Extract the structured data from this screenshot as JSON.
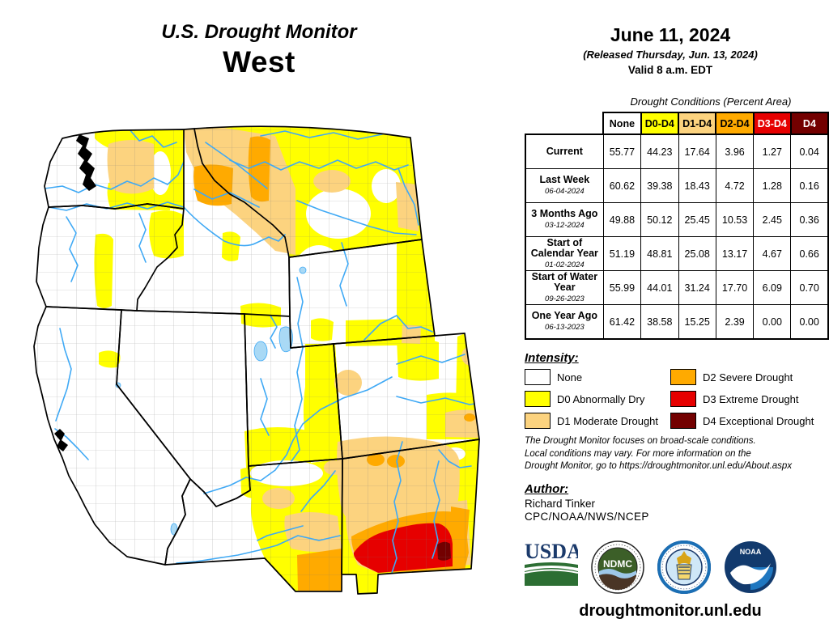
{
  "title": {
    "line1": "U.S. Drought Monitor",
    "region": "West"
  },
  "date_block": {
    "date": "June 11, 2024",
    "released": "(Released Thursday, Jun. 13, 2024)",
    "valid": "Valid 8 a.m. EDT"
  },
  "table": {
    "caption": "Drought Conditions (Percent Area)",
    "columns": [
      {
        "label": "None",
        "bg": "#FFFFFF",
        "fg": "#000000"
      },
      {
        "label": "D0-D4",
        "bg": "#FFFF00",
        "fg": "#000000"
      },
      {
        "label": "D1-D4",
        "bg": "#FCD37F",
        "fg": "#000000"
      },
      {
        "label": "D2-D4",
        "bg": "#FFAA00",
        "fg": "#000000"
      },
      {
        "label": "D3-D4",
        "bg": "#E60000",
        "fg": "#FFFFFF"
      },
      {
        "label": "D4",
        "bg": "#730000",
        "fg": "#FFFFFF"
      }
    ],
    "rows": [
      {
        "label": "Current",
        "date": "",
        "values": [
          "55.77",
          "44.23",
          "17.64",
          "3.96",
          "1.27",
          "0.04"
        ]
      },
      {
        "label": "Last Week",
        "date": "06-04-2024",
        "values": [
          "60.62",
          "39.38",
          "18.43",
          "4.72",
          "1.28",
          "0.16"
        ]
      },
      {
        "label": "3 Months Ago",
        "date": "03-12-2024",
        "values": [
          "49.88",
          "50.12",
          "25.45",
          "10.53",
          "2.45",
          "0.36"
        ]
      },
      {
        "label": "Start of Calendar Year",
        "date": "01-02-2024",
        "values": [
          "51.19",
          "48.81",
          "25.08",
          "13.17",
          "4.67",
          "0.66"
        ]
      },
      {
        "label": "Start of Water Year",
        "date": "09-26-2023",
        "values": [
          "55.99",
          "44.01",
          "31.24",
          "17.70",
          "6.09",
          "0.70"
        ]
      },
      {
        "label": "One Year Ago",
        "date": "06-13-2023",
        "values": [
          "61.42",
          "38.58",
          "15.25",
          "2.39",
          "0.00",
          "0.00"
        ]
      }
    ]
  },
  "legend": {
    "heading": "Intensity:",
    "items": [
      {
        "label": "None",
        "color": "#FFFFFF",
        "col": 0,
        "row": 0
      },
      {
        "label": "D0 Abnormally Dry",
        "color": "#FFFF00",
        "col": 0,
        "row": 1
      },
      {
        "label": "D1 Moderate Drought",
        "color": "#FCD37F",
        "col": 0,
        "row": 2
      },
      {
        "label": "D2 Severe Drought",
        "color": "#FFAA00",
        "col": 1,
        "row": 0
      },
      {
        "label": "D3 Extreme Drought",
        "color": "#E60000",
        "col": 1,
        "row": 1
      },
      {
        "label": "D4 Exceptional Drought",
        "color": "#730000",
        "col": 1,
        "row": 2
      }
    ]
  },
  "palette": {
    "d0": "#FFFF00",
    "d1": "#FCD37F",
    "d2": "#FFAA00",
    "d3": "#E60000",
    "d4": "#730000",
    "river": "#3FA9F5",
    "lake": "#A9D9F5",
    "county_line": "#777777",
    "state_line": "#000000"
  },
  "disclaimer": {
    "lines": [
      "The Drought Monitor focuses on broad-scale conditions.",
      "Local conditions may vary. For more information on the",
      "Drought Monitor, go to https://droughtmonitor.unl.edu/About.aspx"
    ]
  },
  "author": {
    "heading": "Author:",
    "name": "Richard Tinker",
    "org": "CPC/NOAA/NWS/NCEP"
  },
  "logos": {
    "usda_label": "USDA",
    "ndmc_label": "NDMC",
    "noaa_label": "NOAA",
    "icons": [
      "usda-logo-icon",
      "ndmc-seal-icon",
      "commerce-seal-icon",
      "noaa-seal-icon"
    ]
  },
  "footer": {
    "url": "droughtmonitor.unl.edu"
  },
  "chart_data": {
    "type": "table",
    "title": "U.S. Drought Monitor - West - June 11, 2024",
    "categories": [
      "None",
      "D0-D4",
      "D1-D4",
      "D2-D4",
      "D3-D4",
      "D4"
    ],
    "series": [
      {
        "name": "Current",
        "values": [
          55.77,
          44.23,
          17.64,
          3.96,
          1.27,
          0.04
        ]
      },
      {
        "name": "Last Week (06-04-2024)",
        "values": [
          60.62,
          39.38,
          18.43,
          4.72,
          1.28,
          0.16
        ]
      },
      {
        "name": "3 Months Ago (03-12-2024)",
        "values": [
          49.88,
          50.12,
          25.45,
          10.53,
          2.45,
          0.36
        ]
      },
      {
        "name": "Start of Calendar Year (01-02-2024)",
        "values": [
          51.19,
          48.81,
          25.08,
          13.17,
          4.67,
          0.66
        ]
      },
      {
        "name": "Start of Water Year (09-26-2023)",
        "values": [
          55.99,
          44.01,
          31.24,
          17.7,
          6.09,
          0.7
        ]
      },
      {
        "name": "One Year Ago (06-13-2023)",
        "values": [
          61.42,
          38.58,
          15.25,
          2.39,
          0.0,
          0.0
        ]
      }
    ],
    "units": "percent area"
  }
}
